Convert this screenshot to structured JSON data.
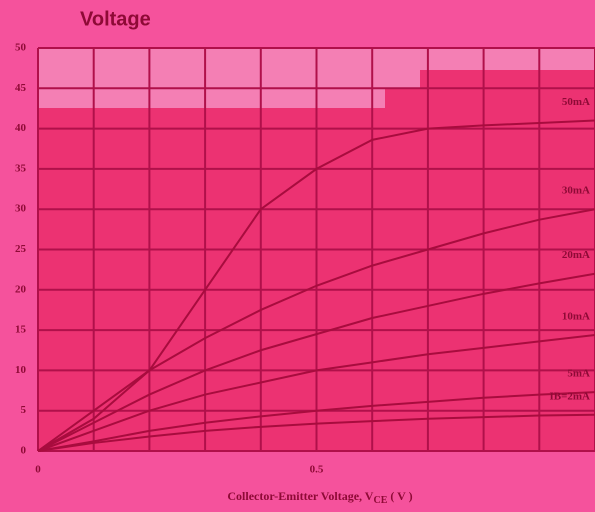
{
  "chart_data": {
    "type": "line",
    "title": "Voltage",
    "x_label": {
      "text": "Collector-Emitter Voltage, V",
      "sub": "CE",
      "suffix": " ( V )"
    },
    "x": [
      0,
      0.1,
      0.2,
      0.3,
      0.4,
      0.5,
      0.6,
      0.7,
      0.8,
      0.9,
      1.0
    ],
    "series": [
      {
        "name": "50mA",
        "color": "#a80c3e",
        "values": [
          0,
          4,
          10,
          20,
          30,
          35,
          38.6,
          40,
          40.4,
          40.7,
          41
        ]
      },
      {
        "name": "30mA",
        "color": "#a80c3e",
        "values": [
          0,
          5,
          10,
          14,
          17.5,
          20.5,
          23,
          25,
          27,
          28.7,
          30
        ]
      },
      {
        "name": "20mA",
        "color": "#a80c3e",
        "values": [
          0,
          3.5,
          7,
          10,
          12.5,
          14.5,
          16.5,
          18,
          19.5,
          20.8,
          22
        ]
      },
      {
        "name": "10mA",
        "color": "#a80c3e",
        "values": [
          0,
          2.5,
          5,
          7,
          8.5,
          10,
          11,
          12,
          12.8,
          13.6,
          14.4
        ]
      },
      {
        "name": "5mA",
        "color": "#a80c3e",
        "values": [
          0,
          1.2,
          2.5,
          3.5,
          4.3,
          5,
          5.6,
          6.1,
          6.6,
          7,
          7.3
        ]
      },
      {
        "name": "IB=2mA",
        "color": "#a80c3e",
        "values": [
          0,
          1,
          1.8,
          2.5,
          3,
          3.4,
          3.7,
          4,
          4.2,
          4.4,
          4.5
        ]
      }
    ],
    "xlim": [
      0,
      1.0
    ],
    "ylim": [
      0,
      50
    ],
    "xticks": [
      0,
      0.5
    ],
    "x_grid": [
      0,
      0.1,
      0.2,
      0.3,
      0.4,
      0.5,
      0.6,
      0.7,
      0.8,
      0.9,
      1.0
    ],
    "yticks": [
      0,
      5,
      10,
      15,
      20,
      25,
      30,
      35,
      40,
      45,
      50
    ],
    "grid": true
  }
}
